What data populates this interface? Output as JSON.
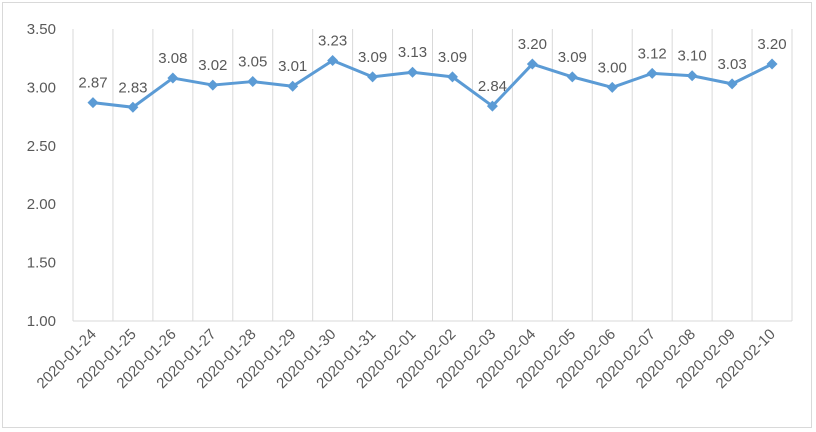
{
  "chart_data": {
    "type": "line",
    "title": "",
    "xlabel": "",
    "ylabel": "",
    "categories": [
      "2020-01-24",
      "2020-01-25",
      "2020-01-26",
      "2020-01-27",
      "2020-01-28",
      "2020-01-29",
      "2020-01-30",
      "2020-01-31",
      "2020-02-01",
      "2020-02-02",
      "2020-02-03",
      "2020-02-04",
      "2020-02-05",
      "2020-02-06",
      "2020-02-07",
      "2020-02-08",
      "2020-02-09",
      "2020-02-10"
    ],
    "values": [
      2.87,
      2.83,
      3.08,
      3.02,
      3.05,
      3.01,
      3.23,
      3.09,
      3.13,
      3.09,
      2.84,
      3.2,
      3.09,
      3.0,
      3.12,
      3.1,
      3.03,
      3.2
    ],
    "data_labels": [
      "2.87",
      "2.83",
      "3.08",
      "3.02",
      "3.05",
      "3.01",
      "3.23",
      "3.09",
      "3.13",
      "3.09",
      "2.84",
      "3.20",
      "3.09",
      "3.00",
      "3.12",
      "3.10",
      "3.03",
      "3.20"
    ],
    "ylim": [
      1.0,
      3.5
    ],
    "yticks": [
      "1.00",
      "1.50",
      "2.00",
      "2.50",
      "3.00",
      "3.50"
    ],
    "ytick_values": [
      1.0,
      1.5,
      2.0,
      2.5,
      3.0,
      3.5
    ],
    "grid": "vertical",
    "legend": "none",
    "line_color": "#5b9bd5",
    "grid_color": "#d9d9d9",
    "marker": "diamond"
  }
}
